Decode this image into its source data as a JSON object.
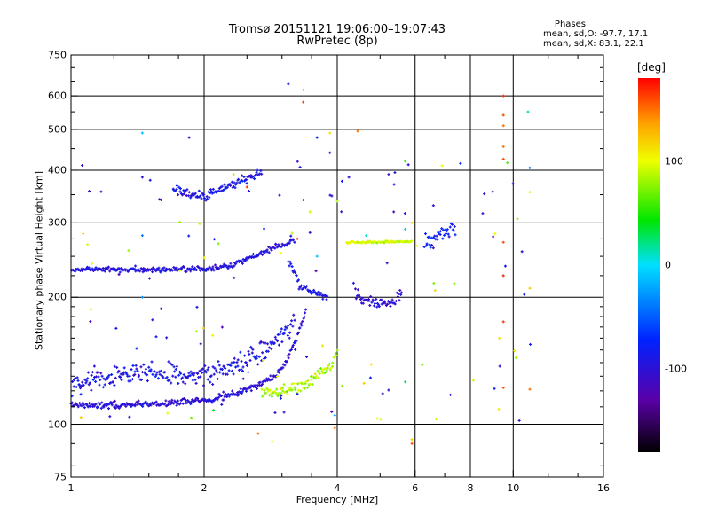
{
  "header": {
    "title_line1": "Tromsø 20151121 19:06:00–19:07:43",
    "title_line2": "RwPretec (8p)",
    "stats_title": "Phases",
    "stats_o": "mean, sd,O: -97.7, 17.1",
    "stats_x": "mean, sd,X: 83.1, 22.1"
  },
  "colorbar": {
    "unit": "[deg]",
    "range": [
      -180,
      180
    ],
    "ticks": [
      {
        "value": 100,
        "label": "100"
      },
      {
        "value": 0,
        "label": "0"
      },
      {
        "value": -100,
        "label": "-100"
      }
    ]
  },
  "chart_data": {
    "type": "scatter",
    "title": "Tromsø 20151121 19:06:00–19:07:43",
    "subtitle": "RwPretec (8p)",
    "xlabel": "Frequency [MHz]",
    "ylabel": "Stationary phase Virtual Height [km]",
    "x_scale": "log",
    "y_scale": "log",
    "xlim": [
      1,
      16
    ],
    "ylim": [
      75,
      750
    ],
    "grid": true,
    "x_ticks": [
      {
        "value": 1,
        "label": "1"
      },
      {
        "value": 2,
        "label": "2"
      },
      {
        "value": 4,
        "label": "4"
      },
      {
        "value": 6,
        "label": "6"
      },
      {
        "value": 8,
        "label": "8"
      },
      {
        "value": 10,
        "label": "10"
      },
      {
        "value": 16,
        "label": "16"
      }
    ],
    "x_grid": [
      2,
      4,
      6,
      8,
      10
    ],
    "y_ticks": [
      {
        "value": 75,
        "label": "75"
      },
      {
        "value": 100,
        "label": "100"
      },
      {
        "value": 200,
        "label": "200"
      },
      {
        "value": 300,
        "label": "300"
      },
      {
        "value": 400,
        "label": "400"
      },
      {
        "value": 500,
        "label": "500"
      },
      {
        "value": 600,
        "label": "600"
      },
      {
        "value": 750,
        "label": "750"
      }
    ],
    "y_grid": [
      100,
      200,
      300,
      400,
      500,
      600
    ],
    "colorbar_label": "[deg]",
    "color_range": [
      -180,
      180
    ],
    "traces": [
      {
        "name": "o-trace",
        "phase": -100,
        "phase_sd": 15,
        "spread": 0.015,
        "points": [
          [
            1.0,
            111
          ],
          [
            1.3,
            111
          ],
          [
            1.6,
            112
          ],
          [
            2.0,
            114
          ],
          [
            2.4,
            119
          ],
          [
            2.8,
            127
          ],
          [
            3.0,
            135
          ],
          [
            3.2,
            155
          ],
          [
            3.4,
            185
          ]
        ]
      },
      {
        "name": "o-trace-upper",
        "phase": -90,
        "phase_sd": 20,
        "spread": 0.05,
        "points": [
          [
            1.0,
            125
          ],
          [
            1.5,
            132
          ],
          [
            2.0,
            130
          ],
          [
            2.4,
            140
          ],
          [
            2.8,
            150
          ],
          [
            3.2,
            175
          ]
        ]
      },
      {
        "name": "x-trace",
        "phase": 85,
        "phase_sd": 20,
        "spread": 0.025,
        "points": [
          [
            2.7,
            119
          ],
          [
            3.0,
            120
          ],
          [
            3.3,
            123
          ],
          [
            3.6,
            130
          ],
          [
            3.9,
            140
          ],
          [
            4.0,
            148
          ]
        ]
      },
      {
        "name": "f-layer-o",
        "phase": -95,
        "phase_sd": 15,
        "spread": 0.012,
        "points": [
          [
            1.0,
            233
          ],
          [
            1.5,
            232
          ],
          [
            2.0,
            233
          ],
          [
            2.3,
            238
          ],
          [
            2.6,
            250
          ],
          [
            2.9,
            263
          ],
          [
            3.2,
            272
          ]
        ]
      },
      {
        "name": "f-layer-descending",
        "phase": -90,
        "phase_sd": 15,
        "spread": 0.02,
        "points": [
          [
            3.1,
            245
          ],
          [
            3.3,
            215
          ],
          [
            3.5,
            205
          ],
          [
            3.8,
            200
          ]
        ]
      },
      {
        "name": "f-layer-blob",
        "phase": -100,
        "phase_sd": 15,
        "spread": 0.025,
        "points": [
          [
            4.4,
            205
          ],
          [
            4.7,
            197
          ],
          [
            5.0,
            193
          ],
          [
            5.3,
            195
          ],
          [
            5.6,
            205
          ]
        ]
      },
      {
        "name": "x-line-270",
        "phase": 95,
        "phase_sd": 15,
        "spread": 0.005,
        "points": [
          [
            4.2,
            270
          ],
          [
            5.0,
            270
          ],
          [
            5.9,
            271
          ]
        ]
      },
      {
        "name": "f-high",
        "phase": -80,
        "phase_sd": 20,
        "spread": 0.04,
        "points": [
          [
            6.3,
            265
          ],
          [
            6.8,
            280
          ],
          [
            7.4,
            290
          ]
        ]
      },
      {
        "name": "f-high-upper",
        "phase": -90,
        "phase_sd": 20,
        "spread": 0.02,
        "points": [
          [
            1.7,
            360
          ],
          [
            2.0,
            345
          ],
          [
            2.3,
            370
          ],
          [
            2.7,
            395
          ]
        ]
      }
    ],
    "scatter_points": [
      {
        "x": 9.5,
        "y": 600,
        "phase": 170
      },
      {
        "x": 9.5,
        "y": 540,
        "phase": 160
      },
      {
        "x": 9.5,
        "y": 510,
        "phase": 150
      },
      {
        "x": 9.5,
        "y": 455,
        "phase": 150
      },
      {
        "x": 9.5,
        "y": 425,
        "phase": 160
      },
      {
        "x": 9.5,
        "y": 270,
        "phase": 160
      },
      {
        "x": 9.5,
        "y": 225,
        "phase": 170
      },
      {
        "x": 9.5,
        "y": 175,
        "phase": 165
      },
      {
        "x": 9.5,
        "y": 122,
        "phase": 155
      },
      {
        "x": 9.3,
        "y": 160,
        "phase": 110
      },
      {
        "x": 9.1,
        "y": 283,
        "phase": 100
      },
      {
        "x": 10.8,
        "y": 550,
        "phase": 20
      },
      {
        "x": 10.9,
        "y": 405,
        "phase": -40
      },
      {
        "x": 10.9,
        "y": 355,
        "phase": 110
      },
      {
        "x": 10.9,
        "y": 121,
        "phase": 150
      },
      {
        "x": 10.9,
        "y": 210,
        "phase": 120
      },
      {
        "x": 3.35,
        "y": 620,
        "phase": 120
      },
      {
        "x": 3.35,
        "y": 580,
        "phase": 160
      },
      {
        "x": 3.1,
        "y": 640,
        "phase": -90
      },
      {
        "x": 3.85,
        "y": 490,
        "phase": 110
      },
      {
        "x": 4.45,
        "y": 495,
        "phase": 150
      },
      {
        "x": 3.6,
        "y": 478,
        "phase": -80
      },
      {
        "x": 3.85,
        "y": 440,
        "phase": -100
      },
      {
        "x": 4.25,
        "y": 385,
        "phase": -100
      },
      {
        "x": 5.7,
        "y": 420,
        "phase": 60
      },
      {
        "x": 5.4,
        "y": 395,
        "phase": -90
      },
      {
        "x": 6.9,
        "y": 410,
        "phase": 100
      },
      {
        "x": 7.6,
        "y": 415,
        "phase": -70
      },
      {
        "x": 1.45,
        "y": 490,
        "phase": -10
      },
      {
        "x": 1.85,
        "y": 478,
        "phase": -100
      },
      {
        "x": 1.45,
        "y": 385,
        "phase": -100
      },
      {
        "x": 1.45,
        "y": 280,
        "phase": -40
      },
      {
        "x": 1.45,
        "y": 200,
        "phase": -30
      },
      {
        "x": 1.35,
        "y": 258,
        "phase": 80
      },
      {
        "x": 3.35,
        "y": 340,
        "phase": -40
      },
      {
        "x": 5.7,
        "y": 290,
        "phase": -10
      },
      {
        "x": 5.9,
        "y": 300,
        "phase": 110
      },
      {
        "x": 3.6,
        "y": 250,
        "phase": -10
      },
      {
        "x": 4.65,
        "y": 280,
        "phase": 10
      },
      {
        "x": 2.65,
        "y": 95,
        "phase": 150
      },
      {
        "x": 2.85,
        "y": 91,
        "phase": 110
      },
      {
        "x": 3.95,
        "y": 98,
        "phase": 150
      },
      {
        "x": 5.9,
        "y": 90,
        "phase": 160
      },
      {
        "x": 5.9,
        "y": 92,
        "phase": 120
      },
      {
        "x": 3.95,
        "y": 105,
        "phase": -20
      },
      {
        "x": 2.1,
        "y": 108,
        "phase": 40
      },
      {
        "x": 4.6,
        "y": 125,
        "phase": 120
      },
      {
        "x": 5.7,
        "y": 126,
        "phase": 30
      },
      {
        "x": 2.5,
        "y": 365,
        "phase": 165
      },
      {
        "x": 1.6,
        "y": 340,
        "phase": -100
      },
      {
        "x": 3.25,
        "y": 275,
        "phase": 160
      },
      {
        "x": 6.6,
        "y": 330,
        "phase": -100
      }
    ],
    "noise_points": 120
  }
}
